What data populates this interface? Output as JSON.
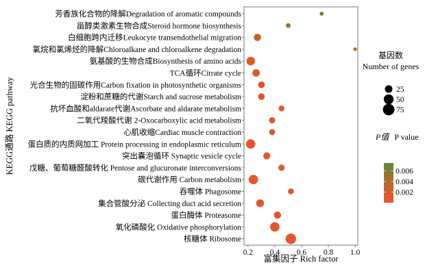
{
  "chart_data": {
    "type": "scatter",
    "xlabel": "富集因子 Rich factor",
    "ylabel": "KEGG通路 KEGG pathway",
    "xlim": [
      0.17,
      1.02
    ],
    "xticks": [
      0.2,
      0.4,
      0.6,
      0.8,
      1.0
    ],
    "xtick_labels": [
      "0.2",
      "0.4",
      "0.6",
      "0.8",
      "1.0"
    ],
    "grid": false,
    "legend_position": "right",
    "size_legend": {
      "title_line1": "基因数",
      "title_line2": "Number of genes",
      "values": [
        25,
        50,
        75
      ],
      "labels": [
        "25",
        "50",
        "75"
      ]
    },
    "color_legend": {
      "title_cn": "P值",
      "title_en": "P value",
      "min": 0.0,
      "max": 0.0075,
      "ticks": [
        0.002,
        0.004,
        0.006
      ],
      "tick_labels": [
        "0.002",
        "0.004",
        "0.006"
      ],
      "low_color": "#f0522a",
      "mid_color": "#b06a2a",
      "high_color": "#5b8a3a"
    },
    "points": [
      {
        "pathway": "芳香族化合物的降解Degradation of aromatic compounds",
        "rich_factor": 0.75,
        "gene_number": 3,
        "p_value": 0.0068
      },
      {
        "pathway": "甾醇类激素生物合成Steroid hormone biosynthesis",
        "rich_factor": 0.5,
        "gene_number": 6,
        "p_value": 0.005
      },
      {
        "pathway": "白细胞跨内迁移Leukocyte transendothelial migration",
        "rich_factor": 0.27,
        "gene_number": 22,
        "p_value": 0.003
      },
      {
        "pathway": "氯烷和氯烯烃的降解Chloroalkane and chloroalkene degradation",
        "rich_factor": 1.0,
        "gene_number": 2,
        "p_value": 0.0025
      },
      {
        "pathway": "氨基酸的生物合成Biosynthesis of amino acids",
        "rich_factor": 0.22,
        "gene_number": 35,
        "p_value": 0.0008
      },
      {
        "pathway": "TCA循环Citrate cycle",
        "rich_factor": 0.26,
        "gene_number": 24,
        "p_value": 0.0008
      },
      {
        "pathway": "光合生物的固碳作用Carbon fixation in photosynthetic organisms",
        "rich_factor": 0.3,
        "gene_number": 18,
        "p_value": 0.001
      },
      {
        "pathway": "淀粉和蔗糖的代谢Starch and sucrose metabolism",
        "rich_factor": 0.3,
        "gene_number": 18,
        "p_value": 0.0015
      },
      {
        "pathway": "抗坏血酸和aldarate代谢Ascorbate and aldarate metabolism",
        "rich_factor": 0.45,
        "gene_number": 12,
        "p_value": 0.0008
      },
      {
        "pathway": "二氧代羧酸代谢 2-Oxocarboxylic acid metabolism",
        "rich_factor": 0.38,
        "gene_number": 14,
        "p_value": 0.001
      },
      {
        "pathway": "心肌收缩Cardiac muscle contraction",
        "rich_factor": 0.38,
        "gene_number": 13,
        "p_value": 0.0012
      },
      {
        "pathway": "蛋白质的内质网加工 Protein processing in endoplasmic reticulum",
        "rich_factor": 0.22,
        "gene_number": 45,
        "p_value": 0.0006
      },
      {
        "pathway": "突出囊泡循环 Synaptic vesicle cycle",
        "rich_factor": 0.34,
        "gene_number": 20,
        "p_value": 0.0008
      },
      {
        "pathway": "戊糖、葡萄糖醛酸转化 Pentose and glucuronate interconversions",
        "rich_factor": 0.45,
        "gene_number": 15,
        "p_value": 0.0012
      },
      {
        "pathway": "碳代谢作用 Carbon metabolism",
        "rich_factor": 0.24,
        "gene_number": 45,
        "p_value": 0.0005
      },
      {
        "pathway": "吞噬体 Phagosome",
        "rich_factor": 0.52,
        "gene_number": 12,
        "p_value": 0.0012
      },
      {
        "pathway": "集合管酸分泌 Collecting duct acid secretion",
        "rich_factor": 0.29,
        "gene_number": 28,
        "p_value": 0.0008
      },
      {
        "pathway": "蛋白酶体 Proteasome",
        "rich_factor": 0.42,
        "gene_number": 22,
        "p_value": 0.0006
      },
      {
        "pathway": "氧化磷酸化 Oxidative phosphorylation",
        "rich_factor": 0.4,
        "gene_number": 45,
        "p_value": 0.0004
      },
      {
        "pathway": "核糖体 Ribosome",
        "rich_factor": 0.52,
        "gene_number": 60,
        "p_value": 0.0003
      }
    ]
  }
}
